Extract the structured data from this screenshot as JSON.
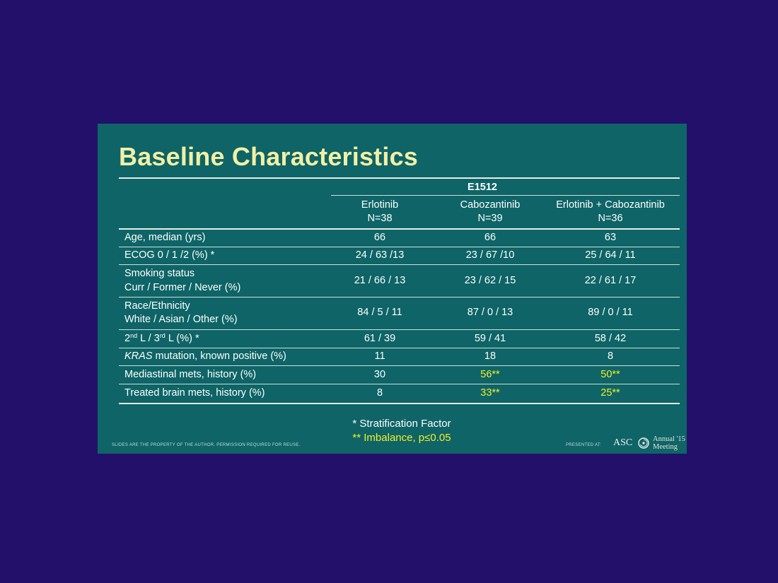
{
  "slide": {
    "title": "Baseline Characteristics",
    "study": "E1512",
    "columns": [
      {
        "name": "Erlotinib",
        "n": "N=38"
      },
      {
        "name": "Cabozantinib",
        "n": "N=39"
      },
      {
        "name": "Erlotinib + Cabozantinib",
        "n": "N=36"
      }
    ],
    "rows": [
      {
        "label1": "Age, median (yrs)",
        "values": [
          "66",
          "66",
          "63"
        ]
      },
      {
        "label1": "ECOG 0 / 1 /2 (%) *",
        "values": [
          "24 / 63 /13",
          "23 / 67 /10",
          "25 / 64 / 11"
        ]
      },
      {
        "label1": "Smoking status",
        "label2": "Curr / Former / Never (%)",
        "values": [
          "21 / 66 / 13",
          "23 / 62 / 15",
          "22 / 61 / 17"
        ]
      },
      {
        "label1": "Race/Ethnicity",
        "label2": "White / Asian / Other (%)",
        "values": [
          "84 / 5 / 11",
          "87 / 0 / 13",
          "89 / 0 / 11"
        ]
      },
      {
        "label_parts": [
          "2",
          "nd",
          " L / 3",
          "rd",
          " L (%) *"
        ],
        "values": [
          "61 / 39",
          "59 / 41",
          "58 / 42"
        ]
      },
      {
        "label_italic": "KRAS",
        "label_rest": " mutation, known positive (%)",
        "values": [
          "11",
          "18",
          "8"
        ]
      },
      {
        "label1": "Mediastinal mets, history (%)",
        "values": [
          "30",
          "56**",
          "50**"
        ]
      },
      {
        "label1": "Treated brain mets, history (%)",
        "values": [
          "8",
          "33**",
          "25**"
        ]
      }
    ],
    "footnote_1": "* Stratification Factor",
    "footnote_2": "** Imbalance, p≤0.05",
    "disclaimer": "SLIDES ARE THE PROPERTY OF THE AUTHOR. PERMISSION REQUIRED FOR REUSE.",
    "presented_at": "PRESENTED AT:",
    "asco": "ASC",
    "annual_line1": "Annual '15",
    "annual_line2": "Meeting",
    "highlight_color": "#f2ef2a",
    "title_color": "#f2f0a6",
    "background_color": "#0e6466",
    "page_background": "#23106b"
  }
}
